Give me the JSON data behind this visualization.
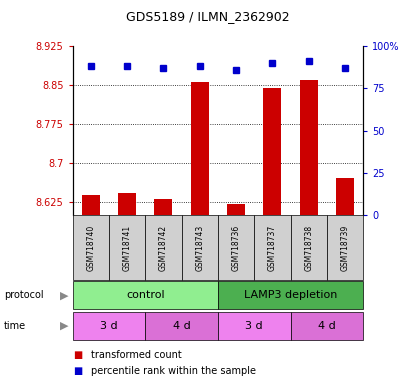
{
  "title": "GDS5189 / ILMN_2362902",
  "samples": [
    "GSM718740",
    "GSM718741",
    "GSM718742",
    "GSM718743",
    "GSM718736",
    "GSM718737",
    "GSM718738",
    "GSM718739"
  ],
  "transformed_count": [
    8.638,
    8.642,
    8.63,
    8.855,
    8.621,
    8.845,
    8.86,
    8.672
  ],
  "percentile_rank": [
    88,
    88,
    87,
    88,
    86,
    90,
    91,
    87
  ],
  "ylim_left": [
    8.6,
    8.925
  ],
  "ylim_right": [
    0,
    100
  ],
  "yticks_left": [
    8.625,
    8.7,
    8.775,
    8.85,
    8.925
  ],
  "ytick_labels_left": [
    "8.625",
    "8.7",
    "8.775",
    "8.85",
    "8.925"
  ],
  "yticks_right": [
    0,
    25,
    50,
    75,
    100
  ],
  "ytick_labels_right": [
    "0",
    "25",
    "50",
    "75",
    "100%"
  ],
  "protocol_groups": [
    {
      "label": "control",
      "start": 0,
      "end": 4,
      "color": "#90EE90"
    },
    {
      "label": "LAMP3 depletion",
      "start": 4,
      "end": 8,
      "color": "#4CAF50"
    }
  ],
  "time_groups": [
    {
      "label": "3 d",
      "start": 0,
      "end": 2,
      "color": "#EE82EE"
    },
    {
      "label": "4 d",
      "start": 2,
      "end": 4,
      "color": "#DA70D6"
    },
    {
      "label": "3 d",
      "start": 4,
      "end": 6,
      "color": "#EE82EE"
    },
    {
      "label": "4 d",
      "start": 6,
      "end": 8,
      "color": "#DA70D6"
    }
  ],
  "bar_color": "#CC0000",
  "marker_color": "#0000CC",
  "label_color_left": "#CC0000",
  "label_color_right": "#0000CC",
  "bar_bottom": 8.6,
  "gridline_y": [
    8.625,
    8.7,
    8.775,
    8.85
  ],
  "legend_items": [
    {
      "color": "#CC0000",
      "label": "transformed count"
    },
    {
      "color": "#0000CC",
      "label": "percentile rank within the sample"
    }
  ]
}
